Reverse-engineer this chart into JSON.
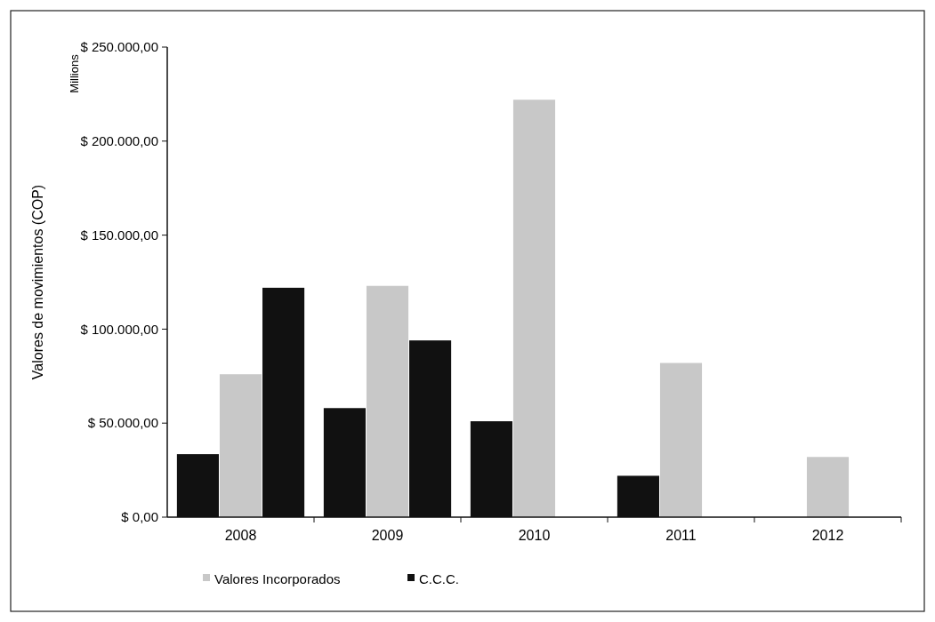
{
  "chart_data": {
    "type": "bar",
    "ylabel": "Valores de movimientos  (COP)",
    "annotations": [
      "Millions"
    ],
    "categories": [
      "2008",
      "2009",
      "2010",
      "2011",
      "2012"
    ],
    "series": [
      {
        "color": "#111111",
        "values": [
          33500,
          58000,
          51000,
          22000,
          0
        ]
      },
      {
        "name": "Valores Incorporados",
        "color": "#c8c8c8",
        "values": [
          76000,
          123000,
          222000,
          82000,
          32000
        ]
      },
      {
        "name": "C.C.C.",
        "color": "#111111",
        "values": [
          122000,
          94000,
          0,
          0,
          0
        ]
      }
    ],
    "ylim": [
      0,
      250000
    ],
    "yticks": [
      {
        "value": 0,
        "label": "$ 0,00"
      },
      {
        "value": 50000,
        "label": "$ 50.000,00"
      },
      {
        "value": 100000,
        "label": "$ 100.000,00"
      },
      {
        "value": 150000,
        "label": "$ 150.000,00"
      },
      {
        "value": 200000,
        "label": "$ 200.000,00"
      },
      {
        "value": 250000,
        "label": "$ 250.000,00"
      }
    ],
    "grid": false,
    "legend": "bottom"
  }
}
